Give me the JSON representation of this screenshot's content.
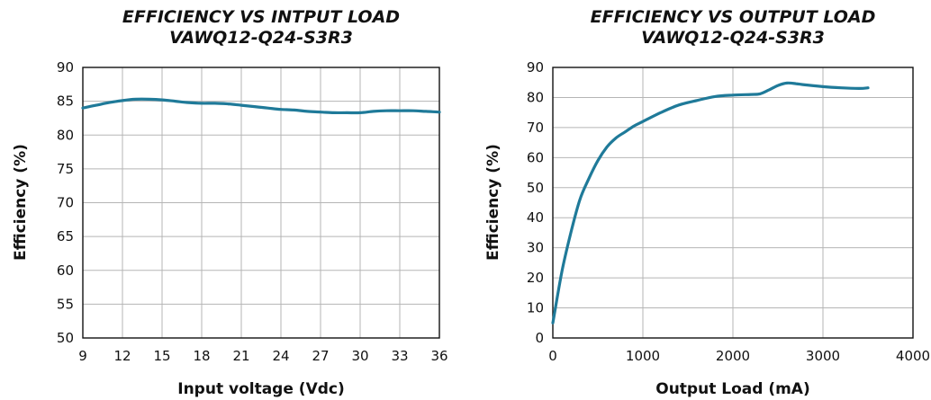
{
  "chart_data": [
    {
      "type": "line",
      "title": "EFFICIENCY VS INTPUT LOAD",
      "subtitle": "VAWQ12-Q24-S3R3",
      "xlabel": "Input voltage (Vdc)",
      "ylabel": "Efficiency (%)",
      "xlim": [
        9,
        36
      ],
      "ylim": [
        50,
        90
      ],
      "xticks": [
        9,
        12,
        15,
        18,
        21,
        24,
        27,
        30,
        33,
        36
      ],
      "yticks": [
        50,
        55,
        60,
        65,
        70,
        75,
        80,
        85,
        90
      ],
      "grid": true,
      "color": "#1f7a99",
      "x": [
        9,
        10,
        11,
        12,
        13,
        14,
        15,
        16,
        17,
        18,
        19,
        20,
        21,
        22,
        23,
        24,
        25,
        26,
        27,
        28,
        29,
        30,
        31,
        32,
        33,
        34,
        35,
        36
      ],
      "y": [
        84.0,
        84.4,
        84.8,
        85.1,
        85.3,
        85.3,
        85.2,
        85.0,
        84.8,
        84.7,
        84.7,
        84.6,
        84.4,
        84.2,
        84.0,
        83.8,
        83.7,
        83.5,
        83.4,
        83.3,
        83.3,
        83.3,
        83.5,
        83.6,
        83.6,
        83.6,
        83.5,
        83.4
      ]
    },
    {
      "type": "line",
      "title": "EFFICIENCY VS OUTPUT LOAD",
      "subtitle": "VAWQ12-Q24-S3R3",
      "xlabel": "Output Load (mA)",
      "ylabel": "Efficiency (%)",
      "xlim": [
        0,
        4000
      ],
      "ylim": [
        0,
        90
      ],
      "xticks": [
        0,
        1000,
        2000,
        3000,
        4000
      ],
      "yticks": [
        0,
        10,
        20,
        30,
        40,
        50,
        60,
        70,
        80,
        90
      ],
      "grid": true,
      "color": "#1f7a99",
      "x": [
        0,
        100,
        200,
        300,
        400,
        500,
        600,
        700,
        800,
        900,
        1000,
        1200,
        1400,
        1600,
        1800,
        2000,
        2200,
        2300,
        2400,
        2500,
        2600,
        2700,
        2800,
        3000,
        3200,
        3400,
        3500
      ],
      "y": [
        5,
        22,
        35,
        46,
        53,
        59,
        63.5,
        66.5,
        68.5,
        70.5,
        72,
        75,
        77.5,
        79,
        80.3,
        80.8,
        81,
        81.2,
        82.5,
        84,
        84.8,
        84.6,
        84.2,
        83.6,
        83.2,
        83.0,
        83.2
      ]
    }
  ]
}
